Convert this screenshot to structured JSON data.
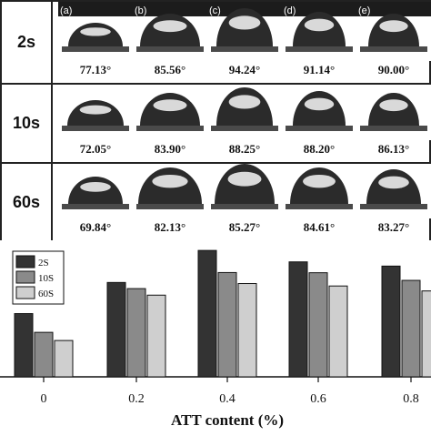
{
  "rows": [
    {
      "label": "2s",
      "angles": [
        "77.13°",
        "85.56°",
        "94.24°",
        "91.14°",
        "90.00°"
      ]
    },
    {
      "label": "10s",
      "angles": [
        "72.05°",
        "83.90°",
        "88.25°",
        "88.20°",
        "86.13°"
      ]
    },
    {
      "label": "60s",
      "angles": [
        "69.84°",
        "82.13°",
        "85.27°",
        "84.61°",
        "83.27°"
      ]
    }
  ],
  "panel_letters": [
    "(a)",
    "(b)",
    "(c)",
    "(d)",
    "(e)"
  ],
  "chart_data": {
    "type": "bar",
    "categories": [
      "0",
      "0.2",
      "0.4",
      "0.6",
      "0.8"
    ],
    "xlabel": "ATT content (%)",
    "ylabel": "",
    "ylim": [
      60,
      96
    ],
    "legend": "top-left",
    "series": [
      {
        "name": "2S",
        "color": "#333333",
        "values": [
          77.13,
          85.56,
          94.24,
          91.14,
          90.0
        ]
      },
      {
        "name": "10S",
        "color": "#8a8a8a",
        "values": [
          72.05,
          83.9,
          88.25,
          88.2,
          86.13
        ]
      },
      {
        "name": "60S",
        "color": "#cfcfcf",
        "values": [
          69.84,
          82.13,
          85.27,
          84.61,
          83.27
        ]
      }
    ]
  }
}
